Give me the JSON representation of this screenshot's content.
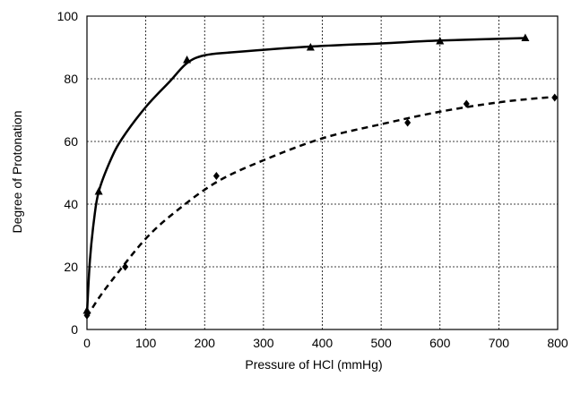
{
  "chart_data": {
    "type": "scatter",
    "title": "",
    "xlabel": "Pressure of HCl (mmHg)",
    "ylabel": "Degree of Protonation",
    "xlim": [
      0,
      800
    ],
    "ylim": [
      0,
      100
    ],
    "xticks": [
      0,
      100,
      200,
      300,
      400,
      500,
      600,
      700,
      800
    ],
    "yticks": [
      0,
      20,
      40,
      60,
      80,
      100
    ],
    "grid": true,
    "series": [
      {
        "marker": "triangle",
        "line_style": "solid",
        "points": [
          [
            0,
            6
          ],
          [
            20,
            44
          ],
          [
            170,
            86
          ],
          [
            380,
            90
          ],
          [
            600,
            92
          ],
          [
            745,
            93
          ]
        ],
        "fit_curve": [
          [
            0,
            5
          ],
          [
            5,
            22
          ],
          [
            12,
            35
          ],
          [
            20,
            44
          ],
          [
            40,
            54
          ],
          [
            60,
            61
          ],
          [
            100,
            71
          ],
          [
            140,
            79
          ],
          [
            170,
            85
          ],
          [
            200,
            87.5
          ],
          [
            250,
            88.5
          ],
          [
            380,
            90.3
          ],
          [
            500,
            91.3
          ],
          [
            600,
            92.2
          ],
          [
            745,
            93
          ]
        ]
      },
      {
        "marker": "diamond",
        "line_style": "dashed",
        "points": [
          [
            0,
            4.5
          ],
          [
            65,
            20
          ],
          [
            220,
            49
          ],
          [
            545,
            66
          ],
          [
            645,
            72
          ],
          [
            795,
            74
          ]
        ],
        "fit_curve": [
          [
            0,
            4
          ],
          [
            20,
            10
          ],
          [
            50,
            17.5
          ],
          [
            100,
            29
          ],
          [
            150,
            37.5
          ],
          [
            220,
            47
          ],
          [
            300,
            54
          ],
          [
            400,
            61
          ],
          [
            500,
            65.5
          ],
          [
            600,
            69.5
          ],
          [
            700,
            72.5
          ],
          [
            780,
            74
          ],
          [
            800,
            74
          ]
        ]
      }
    ]
  }
}
